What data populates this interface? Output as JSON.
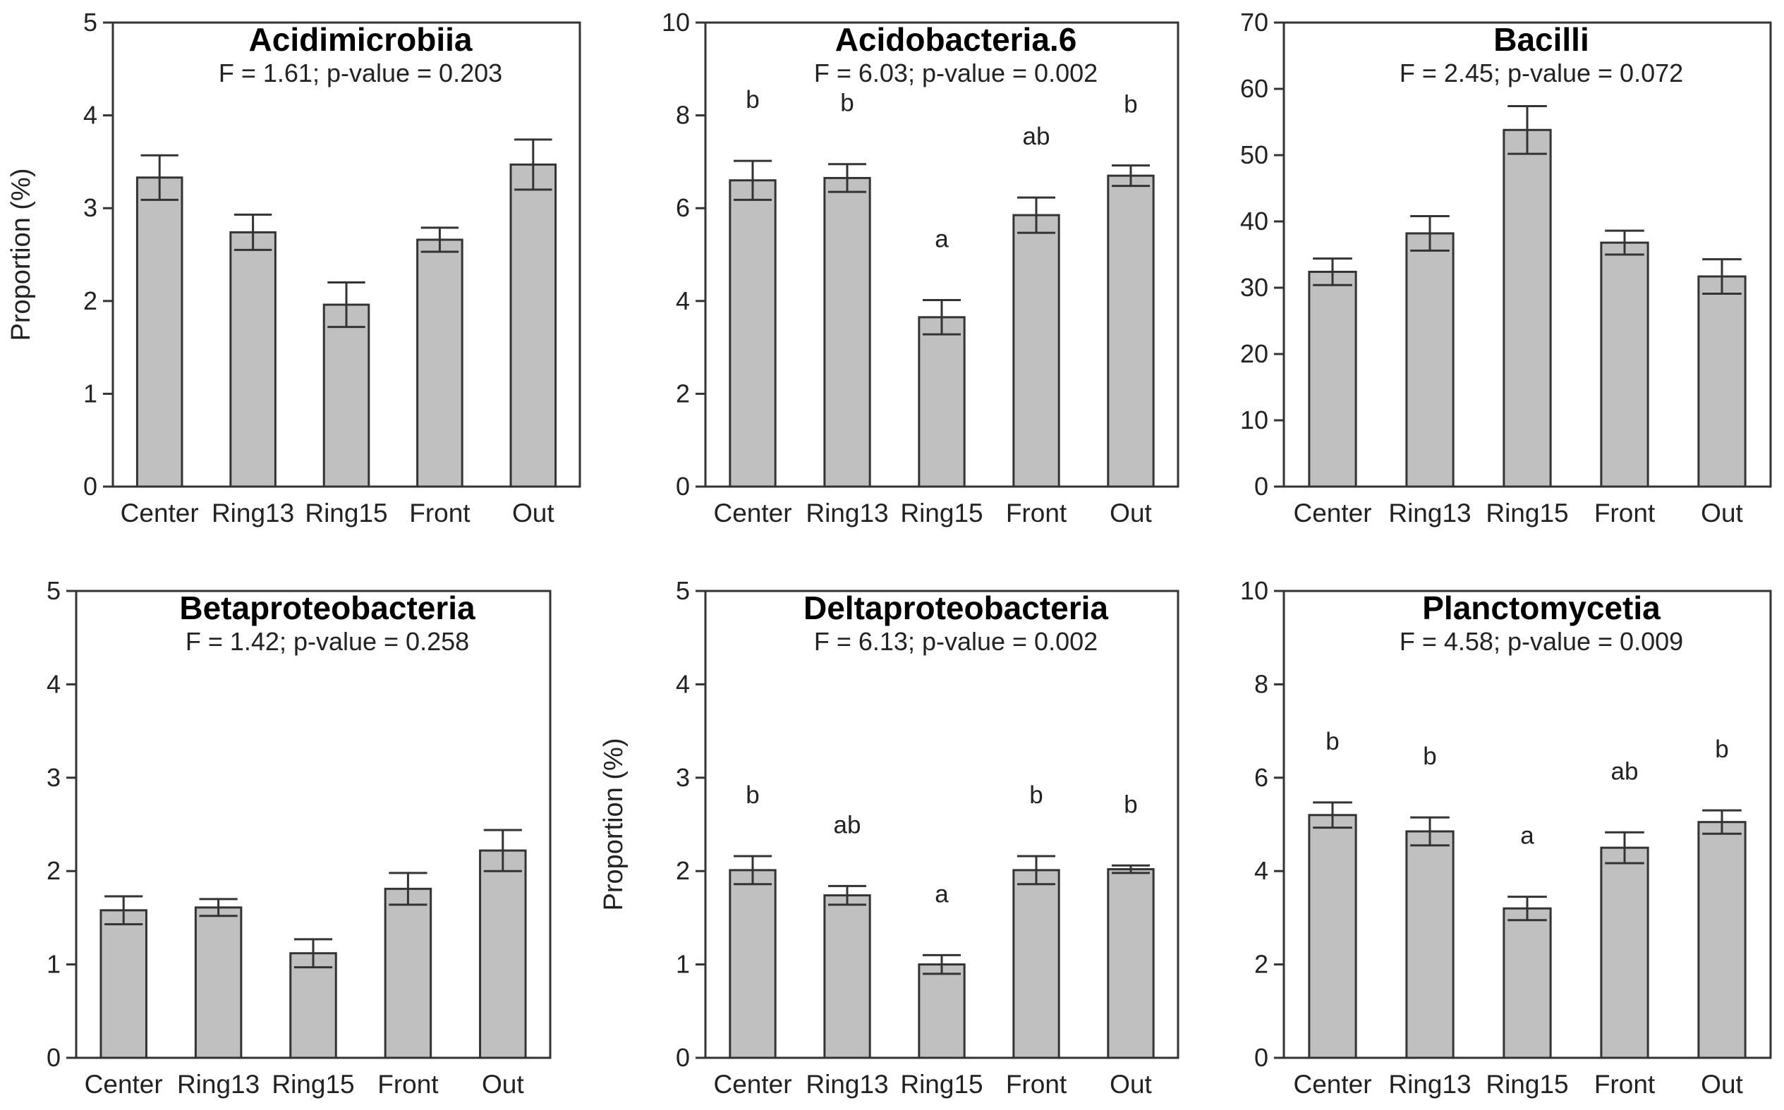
{
  "chart_data": [
    {
      "type": "bar",
      "title": "Acidimicrobiia",
      "subtitle": "F = 1.61; p-value = 0.203",
      "xlabel": "",
      "ylabel": "Proportion (%)",
      "ylim": [
        0,
        5
      ],
      "yticks": [
        0,
        1,
        2,
        3,
        4,
        5
      ],
      "categories": [
        "Center",
        "Ring13",
        "Ring15",
        "Front",
        "Out"
      ],
      "values": [
        3.33,
        2.74,
        1.96,
        2.66,
        3.47
      ],
      "errors": [
        0.24,
        0.19,
        0.24,
        0.13,
        0.27
      ],
      "letters": [
        "",
        "",
        "",
        "",
        ""
      ]
    },
    {
      "type": "bar",
      "title": "Acidobacteria.6",
      "subtitle": "F = 6.03; p-value = 0.002",
      "xlabel": "",
      "ylabel": "",
      "ylim": [
        0,
        10
      ],
      "yticks": [
        0,
        2,
        4,
        6,
        8,
        10
      ],
      "categories": [
        "Center",
        "Ring13",
        "Ring15",
        "Front",
        "Out"
      ],
      "values": [
        6.6,
        6.65,
        3.65,
        5.85,
        6.7
      ],
      "errors": [
        0.42,
        0.3,
        0.37,
        0.38,
        0.22
      ],
      "letters": [
        "b",
        "b",
        "a",
        "ab",
        "b"
      ]
    },
    {
      "type": "bar",
      "title": "Bacilli",
      "subtitle": "F = 2.45; p-value = 0.072",
      "xlabel": "",
      "ylabel": "",
      "ylim": [
        0,
        70
      ],
      "yticks": [
        0,
        10,
        20,
        30,
        40,
        50,
        60,
        70
      ],
      "categories": [
        "Center",
        "Ring13",
        "Ring15",
        "Front",
        "Out"
      ],
      "values": [
        32.4,
        38.2,
        53.8,
        36.8,
        31.7
      ],
      "errors": [
        2.0,
        2.6,
        3.6,
        1.8,
        2.6
      ],
      "letters": [
        "",
        "",
        "",
        "",
        ""
      ]
    },
    {
      "type": "bar",
      "title": "Betaproteobacteria",
      "subtitle": "F = 1.42; p-value = 0.258",
      "xlabel": "",
      "ylabel": "",
      "ylim": [
        0,
        5
      ],
      "yticks": [
        0,
        1,
        2,
        3,
        4,
        5
      ],
      "categories": [
        "Center",
        "Ring13",
        "Ring15",
        "Front",
        "Out"
      ],
      "values": [
        1.58,
        1.61,
        1.12,
        1.81,
        2.22
      ],
      "errors": [
        0.15,
        0.09,
        0.15,
        0.17,
        0.22
      ],
      "letters": [
        "",
        "",
        "",
        "",
        ""
      ]
    },
    {
      "type": "bar",
      "title": "Deltaproteobacteria",
      "subtitle": "F = 6.13; p-value = 0.002",
      "xlabel": "",
      "ylabel": "Proportion (%)",
      "ylim": [
        0,
        5
      ],
      "yticks": [
        0,
        1,
        2,
        3,
        4,
        5
      ],
      "categories": [
        "Center",
        "Ring13",
        "Ring15",
        "Front",
        "Out"
      ],
      "values": [
        2.01,
        1.74,
        1.0,
        2.01,
        2.02
      ],
      "errors": [
        0.15,
        0.1,
        0.1,
        0.15,
        0.04
      ],
      "letters": [
        "b",
        "ab",
        "a",
        "b",
        "b"
      ]
    },
    {
      "type": "bar",
      "title": "Planctomycetia",
      "subtitle": "F = 4.58; p-value = 0.009",
      "xlabel": "",
      "ylabel": "",
      "ylim": [
        0,
        10
      ],
      "yticks": [
        0,
        2,
        4,
        6,
        8,
        10
      ],
      "categories": [
        "Center",
        "Ring13",
        "Ring15",
        "Front",
        "Out"
      ],
      "values": [
        5.2,
        4.85,
        3.2,
        4.5,
        5.05
      ],
      "errors": [
        0.27,
        0.3,
        0.25,
        0.33,
        0.25
      ],
      "letters": [
        "b",
        "b",
        "a",
        "ab",
        "b"
      ]
    }
  ],
  "colors": {
    "bar_fill": "#c0c0c0",
    "bar_stroke": "#333333",
    "axis": "#333333"
  }
}
